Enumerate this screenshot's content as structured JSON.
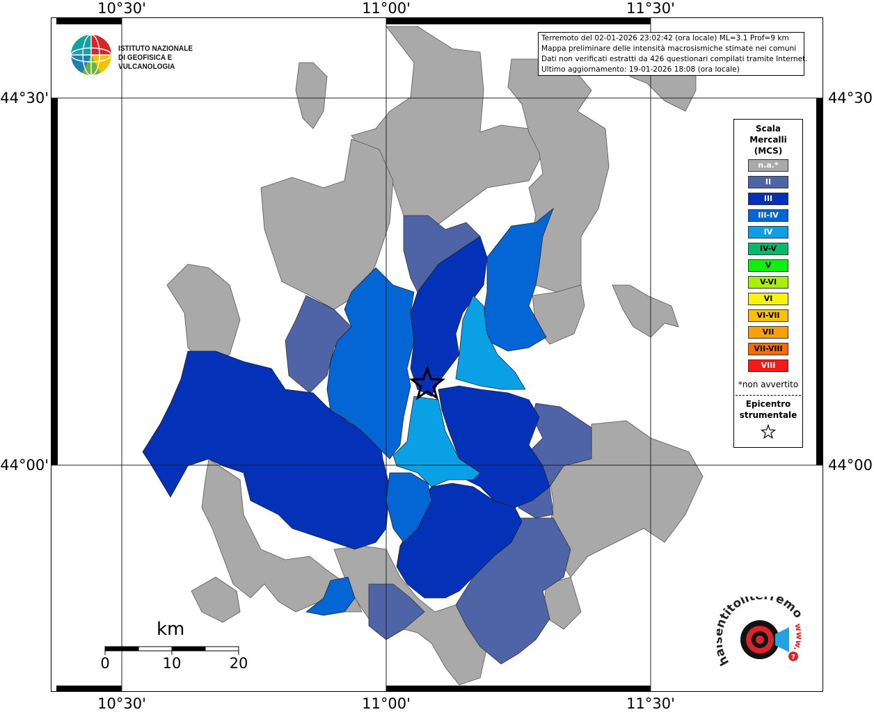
{
  "map": {
    "top_labels": [
      "10°30'",
      "11°00'",
      "11°30'"
    ],
    "bottom_labels": [
      "10°30'",
      "11°00'",
      "11°30'"
    ],
    "left_labels": [
      "44°30'",
      "44°00'"
    ],
    "right_labels": [
      "44°30'",
      "44°00'"
    ]
  },
  "info": {
    "line1": "Terremoto del 02-01-2026 23:02:42 (ora locale) ML=3.1 Prof=9 km",
    "line2": "Mappa preliminare delle intensità macrosismiche stimate nei comuni",
    "line3": "Dati non verificati estratti da 426 questionari compilati tramite Internet.",
    "line4": "Ultimo aggiornamento: 19-01-2026 18:08 (ora locale)"
  },
  "logo": {
    "line1": "ISTITUTO NAZIONALE",
    "line2": "DI GEOFISICA E VULCANOLOGIA"
  },
  "legend": {
    "title1": "Scala",
    "title2": "Mercalli",
    "title3": "(MCS)",
    "items": [
      {
        "label": "n.a.*",
        "color": "#a9a9a9",
        "text": "#ffffff"
      },
      {
        "label": "II",
        "color": "#4f64a6",
        "text": "#ffffff"
      },
      {
        "label": "III",
        "color": "#0332b8",
        "text": "#ffffff"
      },
      {
        "label": "III-IV",
        "color": "#0366d4",
        "text": "#ffffff"
      },
      {
        "label": "IV",
        "color": "#0aa0e6",
        "text": "#ffffff"
      },
      {
        "label": "IV-V",
        "color": "#08b86a",
        "text": "#000000"
      },
      {
        "label": "V",
        "color": "#10f010",
        "text": "#000000"
      },
      {
        "label": "V-VI",
        "color": "#a8f008",
        "text": "#000000"
      },
      {
        "label": "VI",
        "color": "#f8f410",
        "text": "#000000"
      },
      {
        "label": "VI-VII",
        "color": "#f8c00a",
        "text": "#000000"
      },
      {
        "label": "VII",
        "color": "#f8a008",
        "text": "#000000"
      },
      {
        "label": "VII-VIII",
        "color": "#f86c08",
        "text": "#000000"
      },
      {
        "label": "VIII",
        "color": "#f81818",
        "text": "#ffffff"
      }
    ],
    "note": "*non avvertito",
    "epi1": "Epicentro",
    "epi2": "strumentale"
  },
  "scale": {
    "unit": "km",
    "ticks": [
      "0",
      "10",
      "20"
    ]
  },
  "hsi": {
    "text": "haisentitoilterremoto.it",
    "prefix": "www."
  },
  "colors": {
    "na": "#a9a9a9",
    "II": "#4f64a6",
    "III": "#0332b8",
    "III_IV": "#0366d4",
    "IV": "#0aa0e6"
  }
}
